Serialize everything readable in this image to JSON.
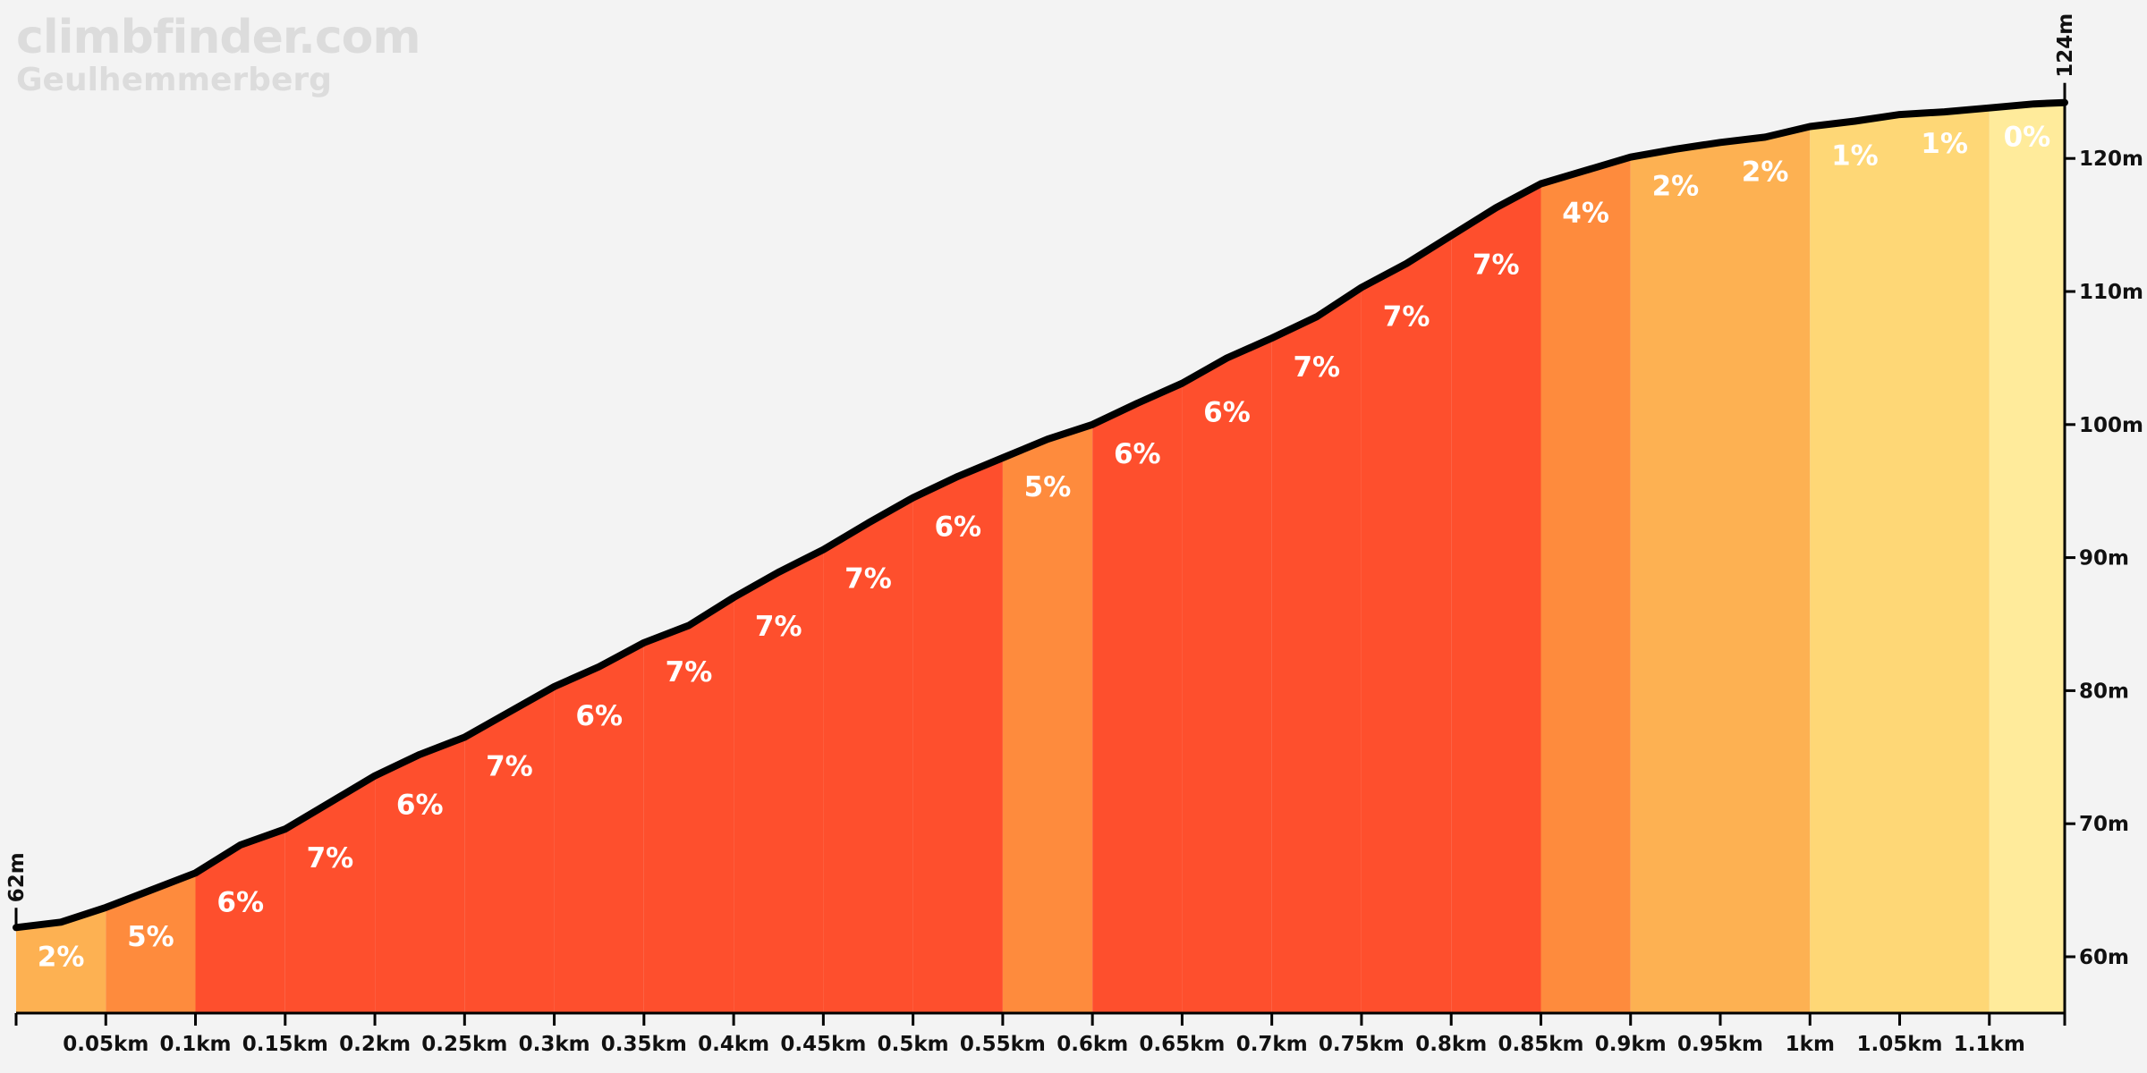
{
  "site": "climbfinder.com",
  "climb_name": "Geulhemmerberg",
  "chart_data": {
    "type": "area",
    "title": "Geulhemmerberg",
    "x_unit": "km",
    "y_unit": "m",
    "xlim": [
      0,
      1.142
    ],
    "ylim": [
      56,
      125
    ],
    "start_label": "62m",
    "end_label": "124m",
    "x_tick_labels": [
      "0.05km",
      "0.1km",
      "0.15km",
      "0.2km",
      "0.25km",
      "0.3km",
      "0.35km",
      "0.4km",
      "0.45km",
      "0.5km",
      "0.55km",
      "0.6km",
      "0.65km",
      "0.7km",
      "0.75km",
      "0.8km",
      "0.85km",
      "0.9km",
      "0.95km",
      "1km",
      "1.05km",
      "1.1km"
    ],
    "y_tick_labels": [
      "60m",
      "70m",
      "80m",
      "90m",
      "100m",
      "110m",
      "120m"
    ],
    "y_ticks": [
      60,
      70,
      80,
      90,
      100,
      110,
      120
    ],
    "segments": [
      {
        "x0": 0.0,
        "x1": 0.05,
        "grade": "2%",
        "color": "#fdb152"
      },
      {
        "x0": 0.05,
        "x1": 0.1,
        "grade": "5%",
        "color": "#fe8b3d"
      },
      {
        "x0": 0.1,
        "x1": 0.15,
        "grade": "6%",
        "color": "#fe4f2d"
      },
      {
        "x0": 0.15,
        "x1": 0.2,
        "grade": "7%",
        "color": "#fe4f2d"
      },
      {
        "x0": 0.2,
        "x1": 0.25,
        "grade": "6%",
        "color": "#fe4f2d"
      },
      {
        "x0": 0.25,
        "x1": 0.3,
        "grade": "7%",
        "color": "#fe4f2d"
      },
      {
        "x0": 0.3,
        "x1": 0.35,
        "grade": "6%",
        "color": "#fe4f2d"
      },
      {
        "x0": 0.35,
        "x1": 0.4,
        "grade": "7%",
        "color": "#fe4f2d"
      },
      {
        "x0": 0.4,
        "x1": 0.45,
        "grade": "7%",
        "color": "#fe4f2d"
      },
      {
        "x0": 0.45,
        "x1": 0.5,
        "grade": "7%",
        "color": "#fe4f2d"
      },
      {
        "x0": 0.5,
        "x1": 0.55,
        "grade": "6%",
        "color": "#fe4f2d"
      },
      {
        "x0": 0.55,
        "x1": 0.6,
        "grade": "5%",
        "color": "#fe8b3d"
      },
      {
        "x0": 0.6,
        "x1": 0.65,
        "grade": "6%",
        "color": "#fe4f2d"
      },
      {
        "x0": 0.65,
        "x1": 0.7,
        "grade": "6%",
        "color": "#fe4f2d"
      },
      {
        "x0": 0.7,
        "x1": 0.75,
        "grade": "7%",
        "color": "#fe4f2d"
      },
      {
        "x0": 0.75,
        "x1": 0.8,
        "grade": "7%",
        "color": "#fe4f2d"
      },
      {
        "x0": 0.8,
        "x1": 0.85,
        "grade": "7%",
        "color": "#fe4f2d"
      },
      {
        "x0": 0.85,
        "x1": 0.9,
        "grade": "4%",
        "color": "#fe8b3d"
      },
      {
        "x0": 0.9,
        "x1": 0.95,
        "grade": "2%",
        "color": "#fdb152"
      },
      {
        "x0": 0.95,
        "x1": 1.0,
        "grade": "2%",
        "color": "#fdb152"
      },
      {
        "x0": 1.0,
        "x1": 1.05,
        "grade": "1%",
        "color": "#fed776"
      },
      {
        "x0": 1.05,
        "x1": 1.1,
        "grade": "1%",
        "color": "#fed776"
      },
      {
        "x0": 1.1,
        "x1": 1.142,
        "grade": "0%",
        "color": "#ffeb9b"
      }
    ],
    "profile": [
      [
        0.0,
        62.2
      ],
      [
        0.025,
        62.6
      ],
      [
        0.05,
        63.7
      ],
      [
        0.075,
        65.0
      ],
      [
        0.1,
        66.3
      ],
      [
        0.125,
        68.4
      ],
      [
        0.15,
        69.6
      ],
      [
        0.175,
        71.6
      ],
      [
        0.2,
        73.6
      ],
      [
        0.225,
        75.2
      ],
      [
        0.25,
        76.5
      ],
      [
        0.275,
        78.4
      ],
      [
        0.3,
        80.3
      ],
      [
        0.325,
        81.8
      ],
      [
        0.35,
        83.6
      ],
      [
        0.375,
        84.9
      ],
      [
        0.4,
        87.0
      ],
      [
        0.425,
        88.9
      ],
      [
        0.45,
        90.6
      ],
      [
        0.475,
        92.6
      ],
      [
        0.5,
        94.5
      ],
      [
        0.525,
        96.1
      ],
      [
        0.55,
        97.5
      ],
      [
        0.575,
        98.9
      ],
      [
        0.6,
        100.0
      ],
      [
        0.625,
        101.6
      ],
      [
        0.65,
        103.1
      ],
      [
        0.675,
        105.0
      ],
      [
        0.7,
        106.5
      ],
      [
        0.725,
        108.1
      ],
      [
        0.75,
        110.3
      ],
      [
        0.775,
        112.1
      ],
      [
        0.8,
        114.2
      ],
      [
        0.825,
        116.3
      ],
      [
        0.85,
        118.1
      ],
      [
        0.875,
        119.1
      ],
      [
        0.9,
        120.1
      ],
      [
        0.925,
        120.7
      ],
      [
        0.95,
        121.2
      ],
      [
        0.975,
        121.6
      ],
      [
        1.0,
        122.4
      ],
      [
        1.025,
        122.8
      ],
      [
        1.05,
        123.3
      ],
      [
        1.075,
        123.5
      ],
      [
        1.1,
        123.8
      ],
      [
        1.125,
        124.1
      ],
      [
        1.142,
        124.2
      ]
    ]
  }
}
